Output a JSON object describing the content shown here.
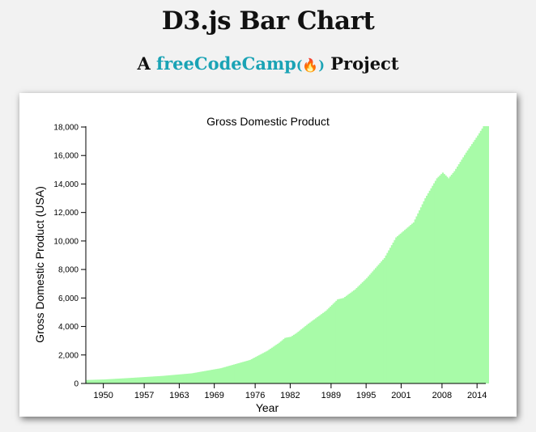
{
  "header": {
    "title": "D3.js Bar Chart",
    "subtitle_prefix": "A",
    "subtitle_link": "freeCodeCamp",
    "subtitle_icon": "(🔥)",
    "subtitle_suffix": "Project"
  },
  "colors": {
    "bar": "#a8fba8",
    "link": "#1aa3b5"
  },
  "chart_data": {
    "type": "bar",
    "title": "Gross Domestic Product",
    "xlabel": "Year",
    "ylabel": "Gross Domestic Product (USA)",
    "ylim": [
      0,
      18000
    ],
    "xlim": [
      1947,
      2015.5
    ],
    "yticks": [
      0,
      2000,
      4000,
      6000,
      8000,
      10000,
      12000,
      14000,
      16000,
      18000
    ],
    "ytick_labels": [
      "0",
      "2,000",
      "4,000",
      "6,000",
      "8,000",
      "10,000",
      "12,000",
      "14,000",
      "16,000",
      "18,000"
    ],
    "xticks": [
      1950,
      1957,
      1963,
      1969,
      1976,
      1982,
      1989,
      1995,
      2001,
      2008,
      2014
    ],
    "xtick_labels": [
      "1950",
      "1957",
      "1963",
      "1969",
      "1976",
      "1982",
      "1989",
      "1995",
      "2001",
      "2008",
      "2014"
    ],
    "grid": false,
    "x_start_year": 1947,
    "x_end_year": 2015,
    "frequency": "quarterly",
    "series": [
      {
        "name": "GDP",
        "points": [
          [
            1947,
            243
          ],
          [
            1950,
            280
          ],
          [
            1955,
            400
          ],
          [
            1960,
            530
          ],
          [
            1965,
            710
          ],
          [
            1970,
            1070
          ],
          [
            1975,
            1650
          ],
          [
            1978,
            2300
          ],
          [
            1980,
            2860
          ],
          [
            1981,
            3200
          ],
          [
            1982,
            3280
          ],
          [
            1983,
            3550
          ],
          [
            1985,
            4200
          ],
          [
            1988,
            5100
          ],
          [
            1990,
            5900
          ],
          [
            1991,
            6000
          ],
          [
            1993,
            6600
          ],
          [
            1995,
            7400
          ],
          [
            1998,
            8800
          ],
          [
            2000,
            10250
          ],
          [
            2001,
            10600
          ],
          [
            2003,
            11300
          ],
          [
            2005,
            13000
          ],
          [
            2007,
            14400
          ],
          [
            2008,
            14800
          ],
          [
            2009,
            14400
          ],
          [
            2010,
            14900
          ],
          [
            2012,
            16200
          ],
          [
            2014,
            17400
          ],
          [
            2015,
            18060
          ]
        ]
      }
    ]
  }
}
